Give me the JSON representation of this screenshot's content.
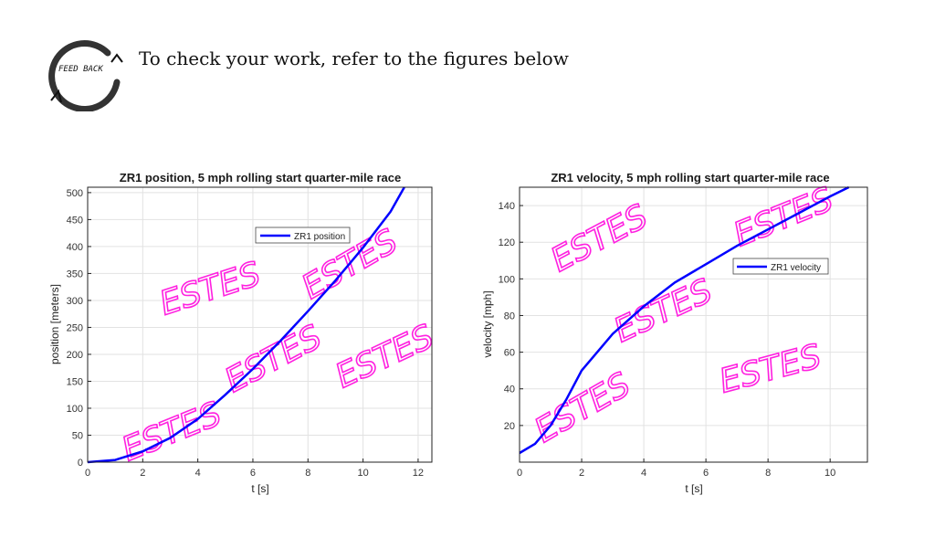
{
  "feedback_logo": {
    "text": "FEED BACK",
    "icon": "circular-arrow-icon"
  },
  "intro_text": "To check your work, refer to the figures below",
  "watermark": "ESTES",
  "colors": {
    "line": "#0000ff",
    "watermark": "#ff20e0",
    "grid": "#e2e2e2"
  },
  "chart_data": [
    {
      "type": "line",
      "title": "ZR1 position, 5 mph rolling start quarter-mile race",
      "xlabel": "t [s]",
      "ylabel": "position [meters]",
      "xlim": [
        0,
        12.5
      ],
      "ylim": [
        0,
        510
      ],
      "xticks": [
        0,
        2,
        4,
        6,
        8,
        10,
        12
      ],
      "yticks": [
        0,
        50,
        100,
        150,
        200,
        250,
        300,
        350,
        400,
        450,
        500
      ],
      "grid": true,
      "legend_position": "upper-right",
      "series": [
        {
          "name": "ZR1 position",
          "x": [
            0,
            1,
            2,
            3,
            4,
            5,
            6,
            7,
            8,
            9,
            10,
            11,
            11.5
          ],
          "y": [
            0,
            4,
            20,
            45,
            80,
            125,
            173,
            225,
            280,
            337,
            398,
            465,
            510
          ]
        }
      ]
    },
    {
      "type": "line",
      "title": "ZR1 velocity, 5 mph rolling start quarter-mile race",
      "xlabel": "t [s]",
      "ylabel": "velocity [mph]",
      "xlim": [
        0,
        11.2
      ],
      "ylim": [
        0,
        150
      ],
      "xticks": [
        0,
        2,
        4,
        6,
        8,
        10
      ],
      "yticks": [
        20,
        40,
        60,
        80,
        100,
        120,
        140
      ],
      "grid": true,
      "legend_position": "upper-right",
      "series": [
        {
          "name": "ZR1 velocity",
          "x": [
            0,
            0.5,
            1,
            1.5,
            2,
            3,
            4,
            5,
            6,
            7,
            8,
            9,
            10,
            10.6
          ],
          "y": [
            5,
            10,
            20,
            34,
            50,
            70,
            85,
            98,
            108,
            118,
            127,
            136,
            145,
            150
          ]
        }
      ]
    }
  ]
}
